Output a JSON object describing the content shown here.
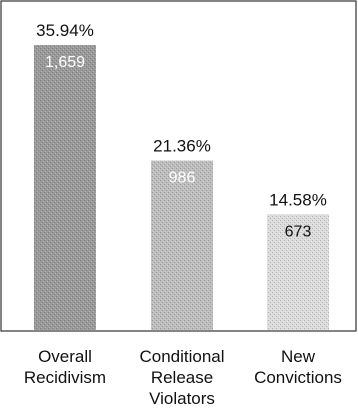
{
  "chart_data": {
    "type": "bar",
    "title": "",
    "xlabel": "",
    "ylabel": "",
    "ylim": [
      0,
      38
    ],
    "grid": false,
    "legend": "none",
    "categories": [
      [
        "Overall",
        "Recidivism"
      ],
      [
        "Conditional",
        "Release",
        "Violators"
      ],
      [
        "New",
        "Convictions"
      ]
    ],
    "values": [
      35.94,
      21.36,
      14.58
    ],
    "value_labels": [
      "35.94%",
      "21.36%",
      "14.58%"
    ],
    "counts": [
      1659,
      986,
      673
    ],
    "count_labels": [
      "1,659",
      "986",
      "673"
    ],
    "colors": [
      "#9a9a9a",
      "#bdbdbd",
      "#dcdcdc"
    ],
    "count_label_colors": [
      "#ffffff",
      "#ffffff",
      "#111111"
    ]
  }
}
